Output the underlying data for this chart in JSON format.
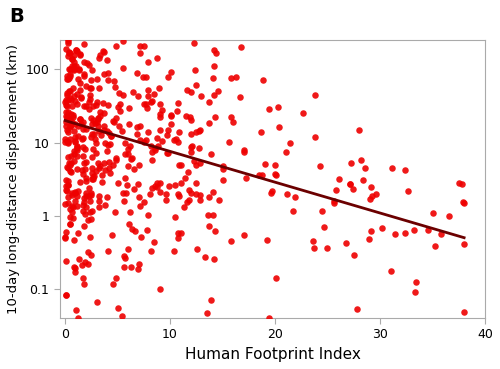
{
  "title_label": "B",
  "xlabel": "Human Footprint Index",
  "ylabel": "10-day long-distance displacement (km)",
  "dot_color": "#ee0000",
  "line_color": "#6b0000",
  "xlim": [
    -0.5,
    40
  ],
  "ylim_log": [
    0.04,
    250
  ],
  "yticks": [
    0.1,
    1,
    10,
    100
  ],
  "xticks": [
    0,
    10,
    20,
    30,
    40
  ],
  "trend_log_y_at_0": 1.3,
  "trend_log_y_at_38": -0.3,
  "dot_size": 22,
  "dot_alpha": 0.9,
  "seed": 42,
  "background_color": "#ffffff",
  "spine_color": "#aaaaaa"
}
